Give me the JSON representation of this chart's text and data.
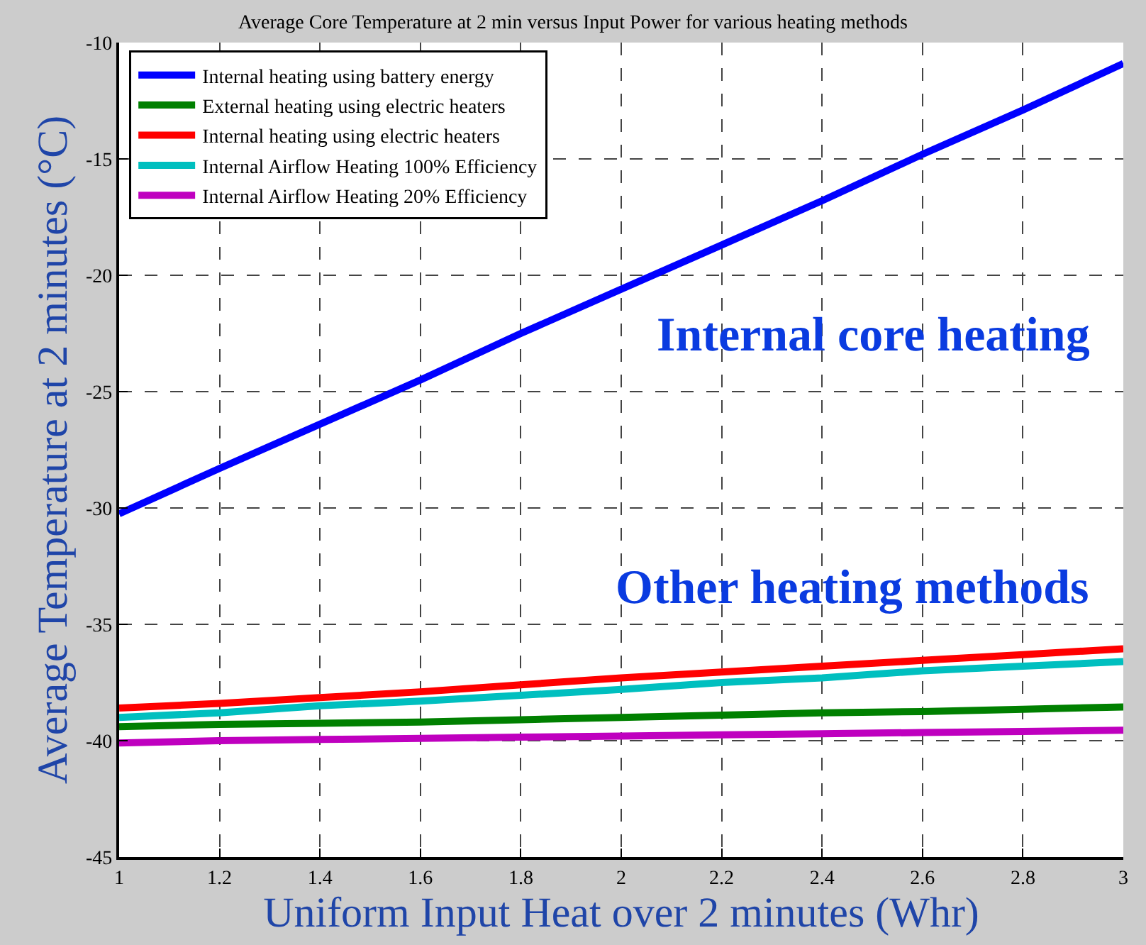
{
  "chart_data": {
    "type": "line",
    "title": "Average Core Temperature at 2 min versus Input Power for various heating methods",
    "xlabel": "Uniform Input Heat over 2 minutes (Whr)",
    "ylabel": "Average Temperature at 2 minutes (°C)",
    "x": [
      1,
      1.2,
      1.4,
      1.6,
      1.8,
      2,
      2.2,
      2.4,
      2.6,
      2.8,
      3
    ],
    "series": [
      {
        "name": "Internal heating using battery energy",
        "color": "#0000ff",
        "values": [
          -30.25,
          -28.3,
          -26.4,
          -24.5,
          -22.5,
          -20.6,
          -18.7,
          -16.8,
          -14.8,
          -12.9,
          -10.9
        ]
      },
      {
        "name": "External heating using electric heaters",
        "color": "#008000",
        "values": [
          -39.4,
          -39.3,
          -39.25,
          -39.2,
          -39.1,
          -39.0,
          -38.9,
          -38.8,
          -38.75,
          -38.65,
          -38.55
        ]
      },
      {
        "name": "Internal heating using electric heaters",
        "color": "#ff0000",
        "values": [
          -38.6,
          -38.4,
          -38.15,
          -37.9,
          -37.6,
          -37.3,
          -37.05,
          -36.8,
          -36.55,
          -36.3,
          -36.05
        ]
      },
      {
        "name": "Internal Airflow Heating 100% Efficiency",
        "color": "#00bfbf",
        "values": [
          -39.0,
          -38.8,
          -38.5,
          -38.3,
          -38.05,
          -37.8,
          -37.5,
          -37.3,
          -37.0,
          -36.8,
          -36.6
        ]
      },
      {
        "name": "Internal Airflow Heating 20% Efficiency",
        "color": "#bf00bf",
        "values": [
          -40.1,
          -40.0,
          -39.95,
          -39.9,
          -39.85,
          -39.8,
          -39.75,
          -39.7,
          -39.65,
          -39.6,
          -39.55
        ]
      }
    ],
    "annotations": [
      "Internal core heating",
      "Other heating methods"
    ],
    "xlim": [
      1,
      3
    ],
    "xticks": [
      1,
      1.2,
      1.4,
      1.6,
      1.8,
      2,
      2.2,
      2.4,
      2.6,
      2.8,
      3
    ],
    "ylim": [
      -45,
      -10
    ],
    "yticks": [
      -45,
      -40,
      -35,
      -30,
      -25,
      -20,
      -15,
      -10
    ],
    "grid": true,
    "legend": "top left",
    "marker": "none",
    "line_style": "solid"
  }
}
